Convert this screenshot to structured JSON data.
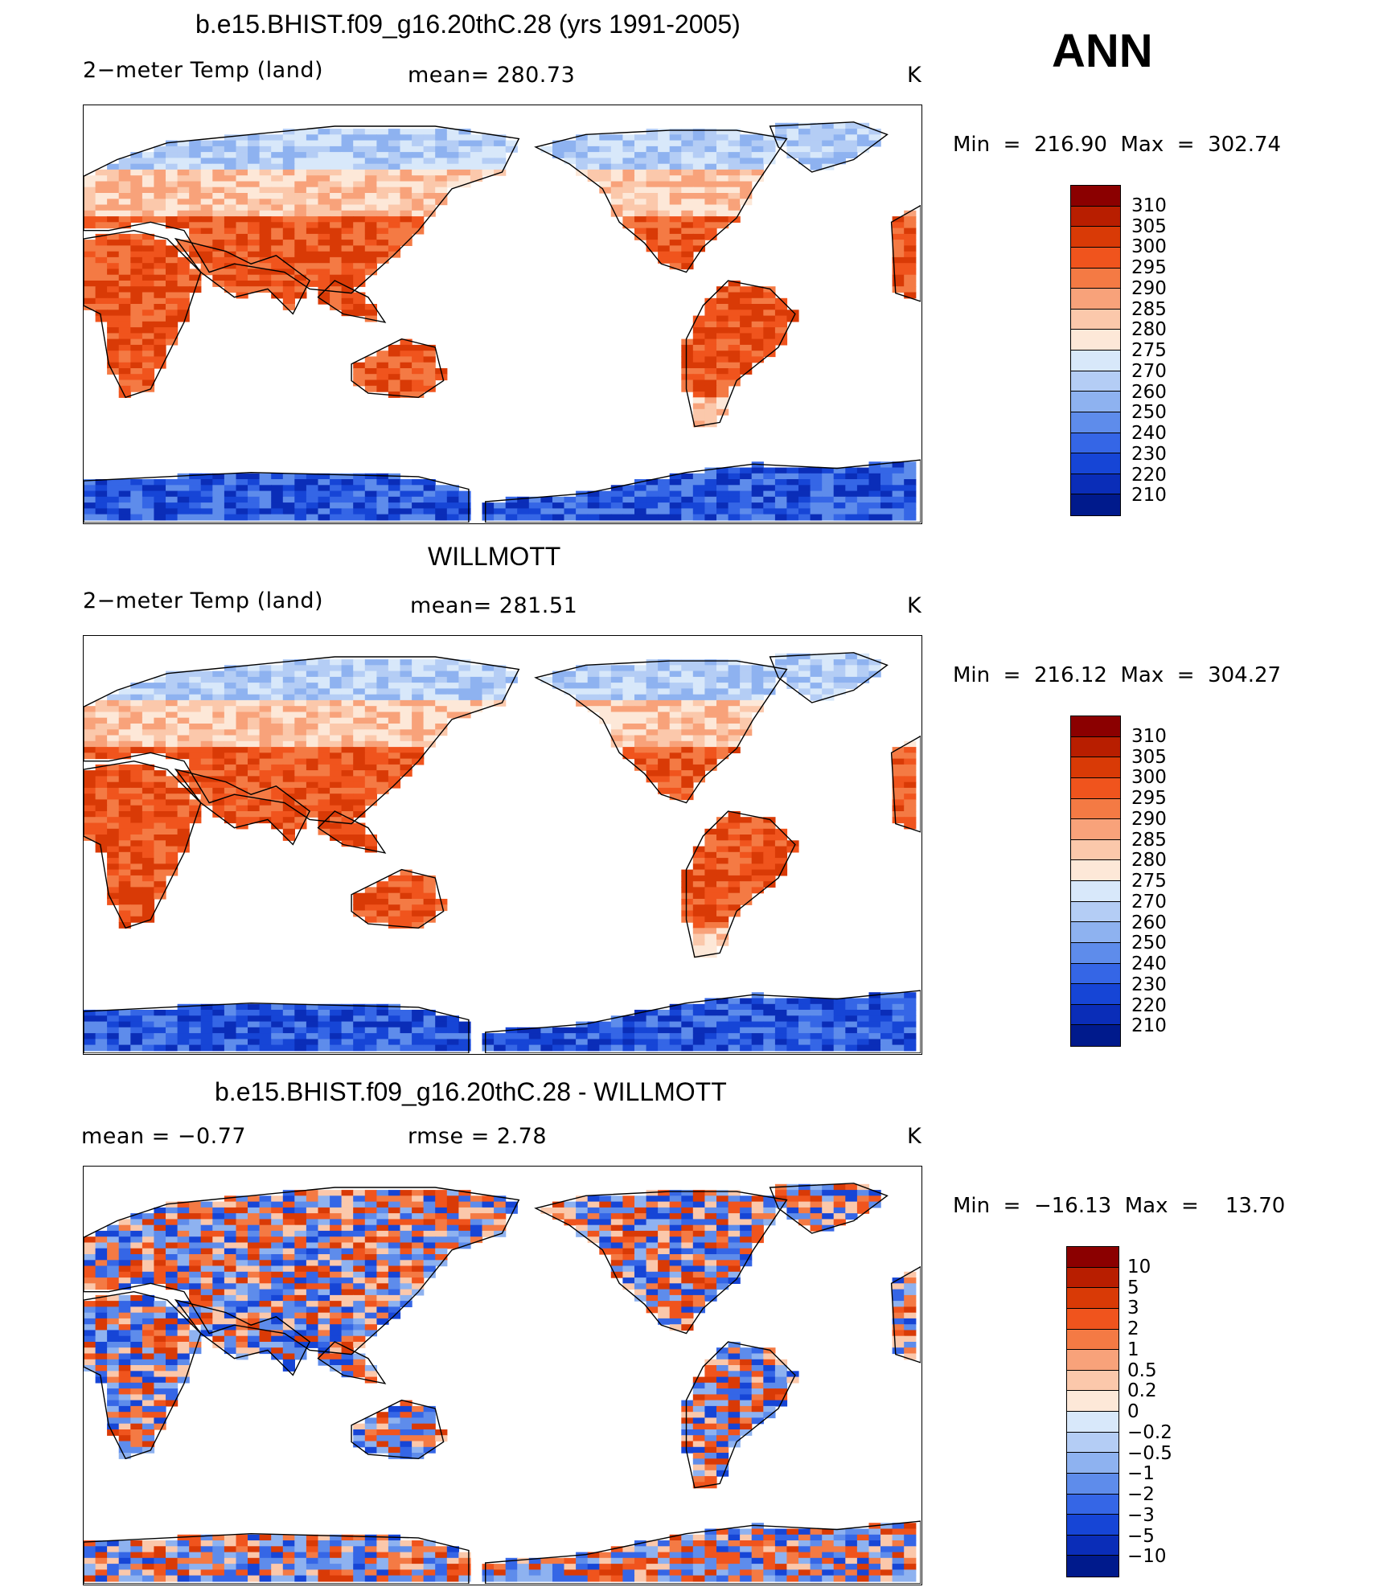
{
  "season": "ANN",
  "panels": [
    {
      "title": "b.e15.BHIST.f09_g16.20thC.28 (yrs 1991-2005)",
      "left_label": "2−meter Temp (land)",
      "center_label": "mean=  280.73",
      "unit": "K",
      "minmax": "Min  =  216.90  Max  =  302.74",
      "field": "model",
      "colorbar": {
        "labels": [
          "310",
          "305",
          "300",
          "295",
          "290",
          "285",
          "280",
          "275",
          "270",
          "260",
          "250",
          "240",
          "230",
          "220",
          "210"
        ],
        "colors": [
          "#8b0000",
          "#b81e00",
          "#d93a06",
          "#f0541d",
          "#f47a44",
          "#f8a27a",
          "#fbc8ab",
          "#fde8d8",
          "#d8e8fa",
          "#b4cdf5",
          "#8eb2f0",
          "#5e8ceb",
          "#3566e6",
          "#1645d6",
          "#0a2db8",
          "#001a8c"
        ]
      }
    },
    {
      "title": "WILLMOTT",
      "left_label": "2−meter Temp (land)",
      "center_label": "mean=  281.51",
      "unit": "K",
      "minmax": "Min  =  216.12  Max  =  304.27",
      "field": "obs",
      "colorbar": {
        "labels": [
          "310",
          "305",
          "300",
          "295",
          "290",
          "285",
          "280",
          "275",
          "270",
          "260",
          "250",
          "240",
          "230",
          "220",
          "210"
        ],
        "colors": [
          "#8b0000",
          "#b81e00",
          "#d93a06",
          "#f0541d",
          "#f47a44",
          "#f8a27a",
          "#fbc8ab",
          "#fde8d8",
          "#d8e8fa",
          "#b4cdf5",
          "#8eb2f0",
          "#5e8ceb",
          "#3566e6",
          "#1645d6",
          "#0a2db8",
          "#001a8c"
        ]
      }
    },
    {
      "title": "b.e15.BHIST.f09_g16.20thC.28 - WILLMOTT",
      "left_label": "mean  =    −0.77",
      "center_label": "rmse  =     2.78",
      "unit": "K",
      "minmax": "Min  =  −16.13  Max  =    13.70",
      "field": "diff",
      "colorbar": {
        "labels": [
          "10",
          "5",
          "3",
          "2",
          "1",
          "0.5",
          "0.2",
          "0",
          "−0.2",
          "−0.5",
          "−1",
          "−2",
          "−3",
          "−5",
          "−10"
        ],
        "colors": [
          "#8b0000",
          "#b81e00",
          "#d93a06",
          "#f0541d",
          "#f47a44",
          "#f8a27a",
          "#fbc8ab",
          "#fde8d8",
          "#d8e8fa",
          "#b4cdf5",
          "#8eb2f0",
          "#5e8ceb",
          "#3566e6",
          "#1645d6",
          "#0a2db8",
          "#001a8c"
        ]
      }
    }
  ]
}
